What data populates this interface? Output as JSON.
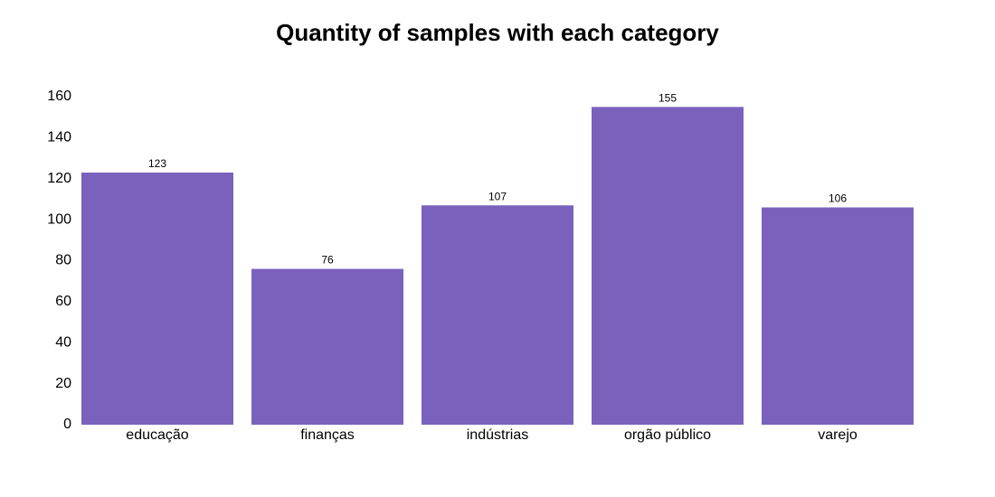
{
  "chart_data": {
    "type": "bar",
    "title": "Quantity of samples with each category",
    "categories": [
      "educação",
      "finanças",
      "indústrias",
      "orgão público",
      "varejo"
    ],
    "values": [
      123,
      76,
      107,
      155,
      106
    ],
    "color": "#7a62bc",
    "ylim": [
      0,
      160
    ],
    "yticks": [
      0,
      20,
      40,
      60,
      80,
      100,
      120,
      140,
      160
    ],
    "grid": false
  }
}
